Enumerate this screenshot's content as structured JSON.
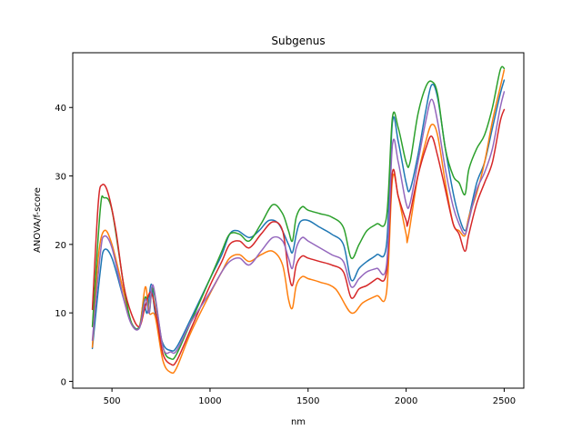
{
  "chart_data": {
    "type": "line",
    "title": "Subgenus",
    "xlabel": "nm",
    "ylabel": "ANOVA/f-score",
    "xlim": [
      300,
      2600
    ],
    "ylim": [
      -1,
      48
    ],
    "xticks": [
      500,
      1000,
      1500,
      2000,
      2500
    ],
    "yticks": [
      0,
      10,
      20,
      30,
      40
    ],
    "grid": false,
    "legend": "none",
    "series": [
      {
        "color": "#1f77b4",
        "points": [
          [
            400,
            4.8
          ],
          [
            440,
            16
          ],
          [
            460,
            19.2
          ],
          [
            500,
            18
          ],
          [
            560,
            12
          ],
          [
            600,
            8.5
          ],
          [
            640,
            7.8
          ],
          [
            660,
            11.5
          ],
          [
            680,
            10
          ],
          [
            700,
            14.2
          ],
          [
            720,
            10
          ],
          [
            760,
            5.5
          ],
          [
            800,
            4.5
          ],
          [
            830,
            5
          ],
          [
            900,
            9
          ],
          [
            1000,
            15
          ],
          [
            1060,
            18.5
          ],
          [
            1100,
            21.5
          ],
          [
            1140,
            22
          ],
          [
            1200,
            21
          ],
          [
            1250,
            22
          ],
          [
            1300,
            23.5
          ],
          [
            1350,
            23
          ],
          [
            1400,
            20
          ],
          [
            1420,
            18.8
          ],
          [
            1440,
            21.5
          ],
          [
            1460,
            23.3
          ],
          [
            1500,
            23.5
          ],
          [
            1560,
            22.5
          ],
          [
            1620,
            21.5
          ],
          [
            1680,
            20
          ],
          [
            1720,
            14.8
          ],
          [
            1760,
            16.5
          ],
          [
            1800,
            17.5
          ],
          [
            1850,
            18.5
          ],
          [
            1900,
            20
          ],
          [
            1930,
            37.8
          ],
          [
            1960,
            35
          ],
          [
            2000,
            29
          ],
          [
            2020,
            28
          ],
          [
            2060,
            33
          ],
          [
            2100,
            39.5
          ],
          [
            2130,
            43.3
          ],
          [
            2160,
            41.5
          ],
          [
            2200,
            34
          ],
          [
            2240,
            27.5
          ],
          [
            2270,
            24
          ],
          [
            2300,
            22
          ],
          [
            2320,
            24
          ],
          [
            2360,
            29
          ],
          [
            2400,
            32
          ],
          [
            2440,
            37
          ],
          [
            2480,
            42
          ],
          [
            2500,
            44
          ]
        ]
      },
      {
        "color": "#ff7f0e",
        "points": [
          [
            400,
            5
          ],
          [
            430,
            18
          ],
          [
            460,
            22
          ],
          [
            500,
            20
          ],
          [
            560,
            13
          ],
          [
            600,
            8.5
          ],
          [
            640,
            8
          ],
          [
            670,
            13.8
          ],
          [
            690,
            10
          ],
          [
            720,
            9.5
          ],
          [
            760,
            3
          ],
          [
            800,
            1.3
          ],
          [
            830,
            2
          ],
          [
            900,
            7
          ],
          [
            1000,
            12.8
          ],
          [
            1060,
            16
          ],
          [
            1100,
            18
          ],
          [
            1150,
            18.5
          ],
          [
            1200,
            17.5
          ],
          [
            1260,
            18.5
          ],
          [
            1320,
            19
          ],
          [
            1370,
            17
          ],
          [
            1400,
            12
          ],
          [
            1420,
            10.7
          ],
          [
            1440,
            14
          ],
          [
            1470,
            15.3
          ],
          [
            1500,
            15
          ],
          [
            1560,
            14.5
          ],
          [
            1640,
            13.5
          ],
          [
            1720,
            10
          ],
          [
            1780,
            11.5
          ],
          [
            1850,
            12.5
          ],
          [
            1900,
            13
          ],
          [
            1930,
            29.5
          ],
          [
            1960,
            27
          ],
          [
            2000,
            21.5
          ],
          [
            2010,
            21
          ],
          [
            2060,
            30
          ],
          [
            2100,
            35
          ],
          [
            2130,
            37.5
          ],
          [
            2160,
            36
          ],
          [
            2200,
            29
          ],
          [
            2240,
            23
          ],
          [
            2270,
            22
          ],
          [
            2300,
            21.3
          ],
          [
            2320,
            24
          ],
          [
            2360,
            27.5
          ],
          [
            2400,
            32
          ],
          [
            2440,
            38
          ],
          [
            2480,
            43
          ],
          [
            2500,
            45.5
          ]
        ]
      },
      {
        "color": "#2ca02c",
        "points": [
          [
            400,
            8
          ],
          [
            440,
            25
          ],
          [
            460,
            26.8
          ],
          [
            500,
            25
          ],
          [
            560,
            14
          ],
          [
            600,
            8.5
          ],
          [
            640,
            8
          ],
          [
            670,
            12.3
          ],
          [
            690,
            10
          ],
          [
            710,
            13.5
          ],
          [
            760,
            5
          ],
          [
            800,
            3.3
          ],
          [
            830,
            4
          ],
          [
            900,
            8.5
          ],
          [
            1000,
            15
          ],
          [
            1060,
            19
          ],
          [
            1100,
            21.5
          ],
          [
            1150,
            21.5
          ],
          [
            1200,
            20.5
          ],
          [
            1260,
            23
          ],
          [
            1320,
            25.8
          ],
          [
            1370,
            24.5
          ],
          [
            1400,
            22
          ],
          [
            1420,
            20.5
          ],
          [
            1440,
            24
          ],
          [
            1470,
            25.5
          ],
          [
            1500,
            25
          ],
          [
            1560,
            24.5
          ],
          [
            1620,
            24
          ],
          [
            1680,
            22.5
          ],
          [
            1720,
            18
          ],
          [
            1760,
            20
          ],
          [
            1800,
            22
          ],
          [
            1850,
            23
          ],
          [
            1900,
            24
          ],
          [
            1930,
            38.5
          ],
          [
            1960,
            37
          ],
          [
            2000,
            32
          ],
          [
            2020,
            32
          ],
          [
            2060,
            39
          ],
          [
            2100,
            43
          ],
          [
            2130,
            43.8
          ],
          [
            2160,
            42
          ],
          [
            2200,
            34
          ],
          [
            2240,
            30
          ],
          [
            2270,
            29
          ],
          [
            2300,
            27.3
          ],
          [
            2320,
            31
          ],
          [
            2360,
            34
          ],
          [
            2400,
            36
          ],
          [
            2440,
            40
          ],
          [
            2480,
            45.5
          ],
          [
            2500,
            45.7
          ]
        ]
      },
      {
        "color": "#d62728",
        "points": [
          [
            400,
            10.5
          ],
          [
            430,
            26
          ],
          [
            450,
            28.7
          ],
          [
            480,
            27.5
          ],
          [
            520,
            22
          ],
          [
            560,
            14
          ],
          [
            600,
            9.8
          ],
          [
            640,
            8
          ],
          [
            670,
            11
          ],
          [
            700,
            13
          ],
          [
            730,
            9
          ],
          [
            760,
            4
          ],
          [
            800,
            2.5
          ],
          [
            830,
            3
          ],
          [
            900,
            7.5
          ],
          [
            1000,
            14
          ],
          [
            1060,
            17.5
          ],
          [
            1100,
            20
          ],
          [
            1150,
            20.5
          ],
          [
            1200,
            19.5
          ],
          [
            1260,
            21.5
          ],
          [
            1320,
            23.3
          ],
          [
            1370,
            22
          ],
          [
            1400,
            16
          ],
          [
            1420,
            14
          ],
          [
            1440,
            17
          ],
          [
            1470,
            18.3
          ],
          [
            1500,
            18
          ],
          [
            1560,
            17.5
          ],
          [
            1620,
            17
          ],
          [
            1680,
            16
          ],
          [
            1720,
            12.2
          ],
          [
            1760,
            13.5
          ],
          [
            1800,
            14
          ],
          [
            1850,
            15
          ],
          [
            1900,
            16
          ],
          [
            1930,
            30.5
          ],
          [
            1960,
            27
          ],
          [
            2000,
            23.5
          ],
          [
            2010,
            23.2
          ],
          [
            2060,
            30
          ],
          [
            2100,
            34
          ],
          [
            2130,
            35.8
          ],
          [
            2160,
            33
          ],
          [
            2200,
            28
          ],
          [
            2240,
            23
          ],
          [
            2270,
            21.5
          ],
          [
            2300,
            19
          ],
          [
            2320,
            21.5
          ],
          [
            2360,
            26
          ],
          [
            2400,
            29
          ],
          [
            2440,
            32
          ],
          [
            2480,
            38
          ],
          [
            2500,
            39.7
          ]
        ]
      },
      {
        "color": "#9467bd",
        "points": [
          [
            400,
            6
          ],
          [
            440,
            18.5
          ],
          [
            460,
            21.2
          ],
          [
            500,
            19.5
          ],
          [
            560,
            12
          ],
          [
            600,
            8.3
          ],
          [
            640,
            7.8
          ],
          [
            670,
            12
          ],
          [
            690,
            10
          ],
          [
            710,
            14
          ],
          [
            760,
            5
          ],
          [
            800,
            4.3
          ],
          [
            830,
            4.5
          ],
          [
            900,
            8.5
          ],
          [
            1000,
            13
          ],
          [
            1060,
            16
          ],
          [
            1100,
            17.5
          ],
          [
            1150,
            18
          ],
          [
            1200,
            17
          ],
          [
            1260,
            19
          ],
          [
            1320,
            21
          ],
          [
            1370,
            20.5
          ],
          [
            1400,
            18
          ],
          [
            1420,
            16.5
          ],
          [
            1440,
            19.5
          ],
          [
            1470,
            21
          ],
          [
            1500,
            20.5
          ],
          [
            1560,
            19.5
          ],
          [
            1620,
            18.5
          ],
          [
            1680,
            17.5
          ],
          [
            1720,
            13.8
          ],
          [
            1760,
            15
          ],
          [
            1800,
            16
          ],
          [
            1850,
            16.5
          ],
          [
            1900,
            17
          ],
          [
            1930,
            34.5
          ],
          [
            1960,
            32
          ],
          [
            2000,
            26
          ],
          [
            2020,
            26
          ],
          [
            2060,
            32
          ],
          [
            2100,
            38
          ],
          [
            2130,
            41.2
          ],
          [
            2160,
            38
          ],
          [
            2200,
            31
          ],
          [
            2240,
            25.5
          ],
          [
            2270,
            23
          ],
          [
            2300,
            21.5
          ],
          [
            2320,
            23.5
          ],
          [
            2360,
            28
          ],
          [
            2400,
            30.5
          ],
          [
            2440,
            34
          ],
          [
            2480,
            40
          ],
          [
            2500,
            42.3
          ]
        ]
      }
    ]
  }
}
